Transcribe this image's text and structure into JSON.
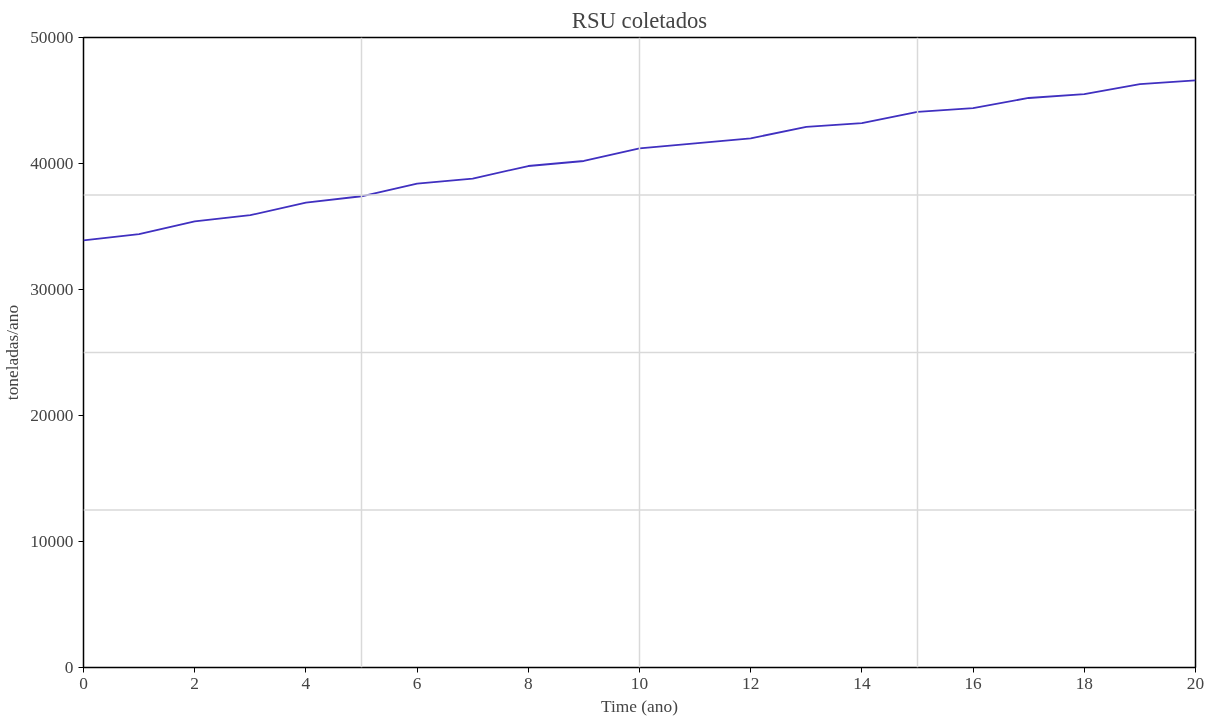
{
  "chart_data": {
    "type": "line",
    "title": "RSU coletados",
    "xlabel": "Time (ano)",
    "ylabel": "toneladas/ano",
    "x": [
      0,
      1,
      2,
      3,
      4,
      5,
      6,
      7,
      8,
      9,
      10,
      11,
      12,
      13,
      14,
      15,
      16,
      17,
      18,
      19,
      20
    ],
    "series": [
      {
        "color": "#4030c0",
        "values": [
          33900,
          34400,
          35400,
          35900,
          36900,
          37400,
          38400,
          38800,
          39800,
          40200,
          41200,
          41600,
          42000,
          42900,
          43200,
          44100,
          44400,
          45200,
          45500,
          46300,
          46600
        ]
      }
    ],
    "xlim": [
      0,
      20
    ],
    "ylim": [
      0,
      50000
    ],
    "xticks": [
      0,
      2,
      4,
      6,
      8,
      10,
      12,
      14,
      16,
      18,
      20
    ],
    "yticks": [
      0,
      10000,
      20000,
      30000,
      40000,
      50000
    ],
    "ref_lines": [
      {
        "axis": "x",
        "value": 5,
        "color": "#d9d9d9"
      },
      {
        "axis": "x",
        "value": 10,
        "color": "#d9d9d9"
      },
      {
        "axis": "x",
        "value": 15,
        "color": "#d9d9d9"
      },
      {
        "axis": "y",
        "value": 12500,
        "color": "#d9d9d9"
      },
      {
        "axis": "y",
        "value": 25000,
        "color": "#d9d9d9"
      },
      {
        "axis": "y",
        "value": 37500,
        "color": "#d9d9d9"
      }
    ],
    "grid": false,
    "marker": "none",
    "line_style": "solid"
  }
}
